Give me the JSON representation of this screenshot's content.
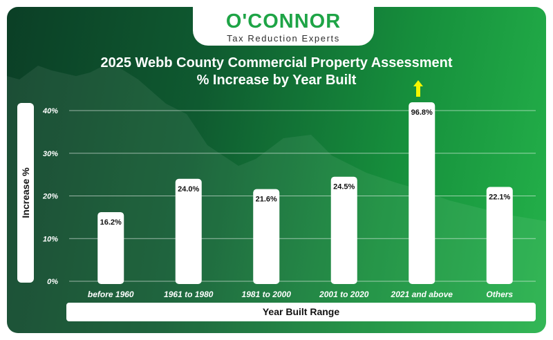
{
  "logo": {
    "name": "O'CONNOR",
    "tagline": "Tax Reduction Experts"
  },
  "colors": {
    "brand_green": "#1ea446",
    "bar": "#ffffff",
    "arrow": "#f5f500",
    "label_text": "#111111"
  },
  "chart_data": {
    "type": "bar",
    "title": "2025 Webb County Commercial Property Assessment",
    "subtitle": "% Increase by Year Built",
    "xlabel": "Year Built Range",
    "ylabel": "Increase %",
    "categories": [
      "before 1960",
      "1961 to 1980",
      "1981 to 2000",
      "2001 to 2020",
      "2021 and above",
      "Others"
    ],
    "values": [
      16.2,
      24.0,
      21.6,
      24.5,
      96.8,
      22.1
    ],
    "data_labels": [
      "16.2%",
      "24.0%",
      "21.6%",
      "24.5%",
      "96.8%",
      "22.1%"
    ],
    "yticks": [
      "0%",
      "10%",
      "20%",
      "30%",
      "40%"
    ],
    "ytick_values": [
      0,
      10,
      20,
      30,
      40
    ],
    "ylim": [
      0,
      40
    ],
    "truncated_bar": "2021 and above",
    "grid": true,
    "legend": "none"
  }
}
